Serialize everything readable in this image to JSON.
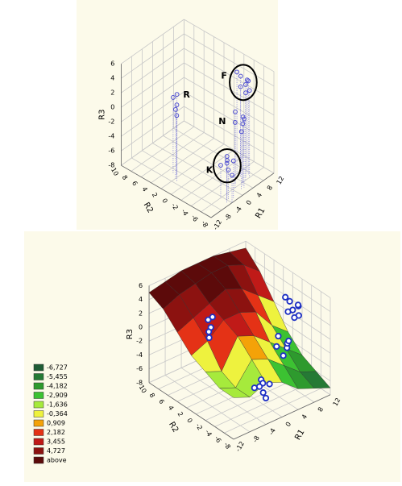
{
  "chart_data": [
    {
      "type": "scatter3d",
      "x_label": "R1",
      "y_label": "R2",
      "z_label": "R3",
      "xlim": [
        -12,
        12
      ],
      "xticks": [
        -12,
        -8,
        -4,
        0,
        4,
        8,
        12
      ],
      "ylim": [
        -8,
        10
      ],
      "yticks": [
        10,
        8,
        6,
        4,
        2,
        0,
        -2,
        -4,
        -6,
        -8
      ],
      "zlim": [
        -8,
        6
      ],
      "zticks": [
        6,
        4,
        2,
        0,
        -2,
        -4,
        -6,
        -8
      ],
      "color": "#4b4bd0",
      "groups": [
        {
          "name": "F",
          "circled": true,
          "x": [
            5,
            6,
            7,
            6.5,
            5.5,
            7.5,
            6,
            5
          ],
          "y": [
            -5,
            -4.5,
            -5.5,
            -6,
            -4,
            -5,
            -5.5,
            -6
          ],
          "z": [
            4.5,
            5.5,
            5,
            4,
            6,
            4.8,
            3.6,
            5.2
          ]
        },
        {
          "name": "N",
          "circled": false,
          "x": [
            1,
            2,
            3,
            2.5,
            4,
            1.5
          ],
          "y": [
            -6,
            -5.5,
            -6.5,
            -7,
            -6,
            -7
          ],
          "z": [
            1,
            2,
            0.5,
            1.5,
            1,
            0
          ]
        },
        {
          "name": "K",
          "circled": true,
          "x": [
            -4,
            -3,
            -5,
            -3.5,
            -4.5,
            -2.5,
            -4
          ],
          "y": [
            -7,
            -6.5,
            -7.5,
            -7,
            -6,
            -7.5,
            -8
          ],
          "z": [
            -2,
            -3,
            -2.5,
            -4,
            -3.5,
            -2.8,
            -4.2
          ]
        },
        {
          "name": "R",
          "circled": false,
          "x": [
            -6,
            -5,
            -7,
            -6.5,
            -5.5
          ],
          "y": [
            2,
            2.5,
            1.5,
            2,
            3
          ],
          "z": [
            2,
            3,
            1,
            1.5,
            2.5
          ]
        }
      ]
    },
    {
      "type": "surface3d",
      "x_label": "R1",
      "y_label": "R2",
      "z_label": "R3",
      "xlim": [
        -12,
        12
      ],
      "xticks": [
        -12,
        -8,
        -4,
        0,
        4,
        8,
        12
      ],
      "ylim": [
        -8,
        10
      ],
      "yticks": [
        10,
        8,
        6,
        4,
        2,
        0,
        -2,
        -4,
        -6,
        -8
      ],
      "zlim": [
        -8,
        6
      ],
      "zticks": [
        6,
        4,
        2,
        0,
        -2,
        -4,
        -6,
        -8
      ],
      "surface": {
        "x": [
          -12,
          -8,
          -4,
          0,
          4,
          8,
          12
        ],
        "y": [
          10,
          7,
          4,
          1,
          -2,
          -5,
          -8
        ],
        "z": [
          [
            5,
            5.5,
            6,
            6,
            6,
            5.5,
            5
          ],
          [
            4,
            5,
            5.5,
            6,
            6,
            5,
            3
          ],
          [
            2,
            3,
            4,
            5,
            4,
            2,
            0
          ],
          [
            0,
            1,
            3,
            3,
            2,
            -1,
            -3
          ],
          [
            -1,
            -2,
            2,
            1,
            -1,
            -3,
            -5
          ],
          [
            -2,
            -3,
            0,
            -1,
            -3,
            -5,
            -6
          ],
          [
            -2,
            -3,
            -2,
            -3,
            -5,
            -6,
            -7
          ]
        ]
      },
      "legend": [
        {
          "value": -6.727,
          "label": "-6,727",
          "color": "#1f5c35"
        },
        {
          "value": -5.455,
          "label": "-5,455",
          "color": "#257a35"
        },
        {
          "value": -4.182,
          "label": "-4,182",
          "color": "#2e9a2e"
        },
        {
          "value": -2.909,
          "label": "-2,909",
          "color": "#3cc232"
        },
        {
          "value": -1.636,
          "label": "-1,636",
          "color": "#a6ea3c"
        },
        {
          "value": -0.364,
          "label": "-0,364",
          "color": "#eef23e"
        },
        {
          "value": 0.909,
          "label": "0,909",
          "color": "#f4a208"
        },
        {
          "value": 2.182,
          "label": "2,182",
          "color": "#e43216"
        },
        {
          "value": 3.455,
          "label": "3,455",
          "color": "#c01a18"
        },
        {
          "value": 4.727,
          "label": "4,727",
          "color": "#8c1210"
        },
        {
          "label": "above",
          "color": "#5c0a0a"
        }
      ]
    }
  ]
}
